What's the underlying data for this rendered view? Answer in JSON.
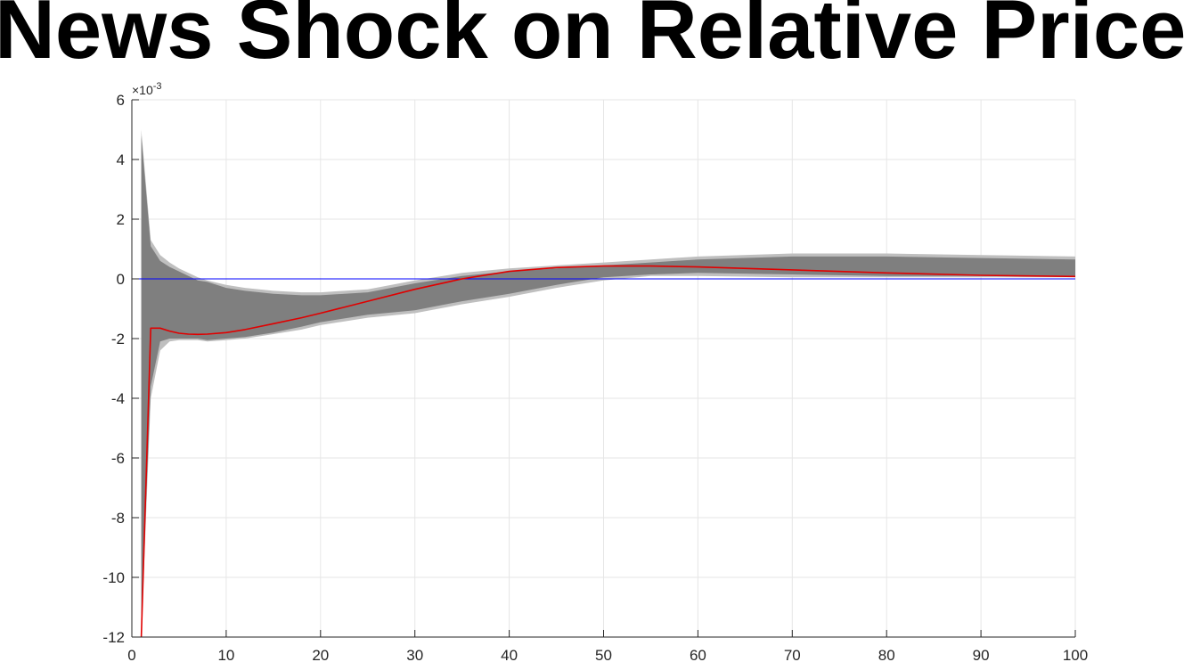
{
  "chart_data": {
    "type": "line",
    "title": "News Shock on Relative Price",
    "xlabel": "",
    "ylabel": "",
    "exponent_label": "×10",
    "exponent_power": "-3",
    "xlim": [
      0,
      100
    ],
    "ylim": [
      -12,
      6
    ],
    "xticks": [
      0,
      10,
      20,
      30,
      40,
      50,
      60,
      70,
      80,
      90,
      100
    ],
    "yticks": [
      -12,
      -10,
      -8,
      -6,
      -4,
      -2,
      0,
      2,
      4,
      6
    ],
    "grid": true,
    "colors": {
      "outer_band": "#bfbfbf",
      "inner_band": "#7f7f7f",
      "median": "#e00000",
      "zero_line": "#0000ff",
      "grid": "#e6e6e6",
      "axis": "#262626"
    },
    "outer_band": {
      "x": [
        1,
        2,
        3,
        4,
        5,
        6,
        7,
        8,
        10,
        12,
        15,
        18,
        20,
        25,
        30,
        35,
        40,
        45,
        50,
        55,
        60,
        70,
        80,
        90,
        100
      ],
      "upper": [
        5.0,
        1.3,
        0.8,
        0.55,
        0.35,
        0.2,
        0.05,
        -0.05,
        -0.2,
        -0.3,
        -0.4,
        -0.45,
        -0.45,
        -0.35,
        -0.05,
        0.2,
        0.35,
        0.45,
        0.55,
        0.65,
        0.75,
        0.85,
        0.85,
        0.8,
        0.75
      ],
      "lower": [
        -12.0,
        -4.0,
        -2.4,
        -2.1,
        -2.05,
        -2.05,
        -2.05,
        -2.1,
        -2.05,
        -2.0,
        -1.85,
        -1.7,
        -1.55,
        -1.3,
        -1.15,
        -0.85,
        -0.6,
        -0.3,
        -0.05,
        0.1,
        0.1,
        0.05,
        0.05,
        0.05,
        0.05
      ]
    },
    "inner_band": {
      "x": [
        1,
        2,
        3,
        4,
        5,
        6,
        7,
        8,
        10,
        12,
        15,
        18,
        20,
        25,
        30,
        35,
        40,
        45,
        50,
        55,
        60,
        70,
        80,
        90,
        100
      ],
      "upper": [
        4.8,
        1.1,
        0.6,
        0.4,
        0.25,
        0.1,
        -0.05,
        -0.1,
        -0.3,
        -0.4,
        -0.5,
        -0.55,
        -0.55,
        -0.45,
        -0.15,
        0.1,
        0.25,
        0.35,
        0.45,
        0.55,
        0.65,
        0.75,
        0.75,
        0.7,
        0.65
      ],
      "lower": [
        -11.5,
        -3.6,
        -2.1,
        -2.0,
        -2.0,
        -2.0,
        -2.0,
        -2.05,
        -2.0,
        -1.95,
        -1.8,
        -1.6,
        -1.45,
        -1.2,
        -1.05,
        -0.75,
        -0.5,
        -0.2,
        0.05,
        0.15,
        0.2,
        0.15,
        0.1,
        0.1,
        0.1
      ]
    },
    "series": [
      {
        "type": "line",
        "x": [
          1,
          2,
          3,
          4,
          5,
          6,
          7,
          8,
          10,
          12,
          15,
          18,
          20,
          25,
          30,
          35,
          40,
          45,
          50,
          55,
          60,
          70,
          80,
          90,
          100
        ],
        "values": [
          -12.0,
          -1.65,
          -1.65,
          -1.75,
          -1.82,
          -1.85,
          -1.86,
          -1.85,
          -1.8,
          -1.7,
          -1.5,
          -1.3,
          -1.15,
          -0.75,
          -0.35,
          0.0,
          0.25,
          0.38,
          0.43,
          0.43,
          0.4,
          0.3,
          0.2,
          0.12,
          0.08
        ]
      }
    ]
  }
}
